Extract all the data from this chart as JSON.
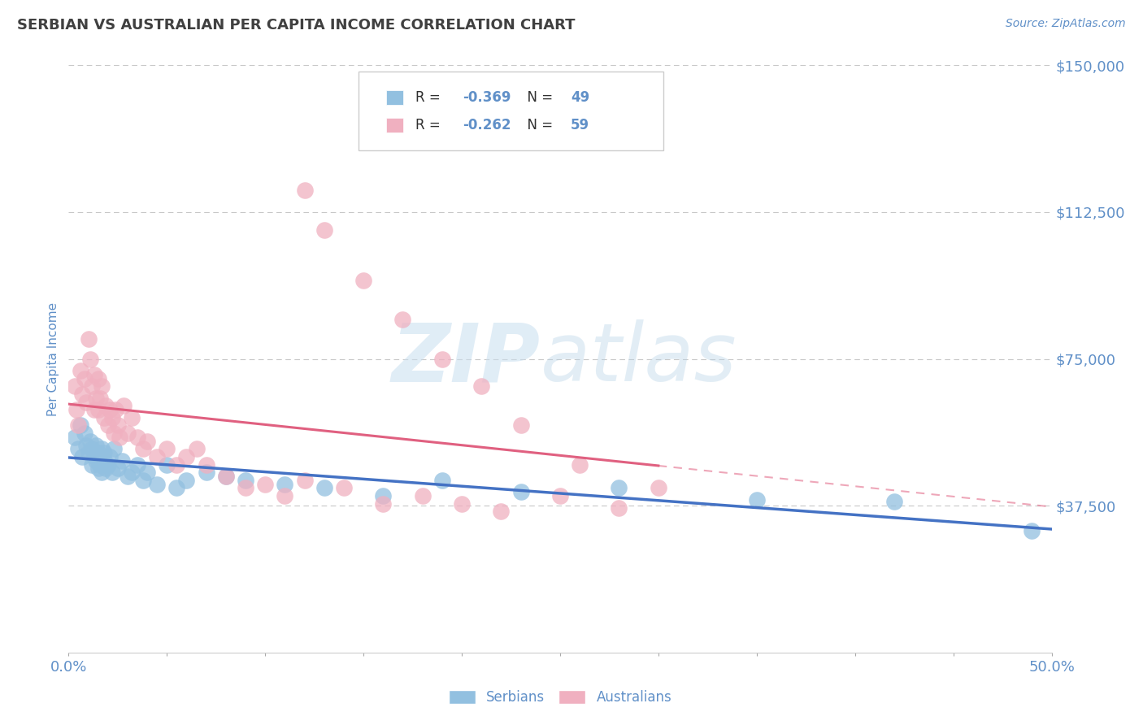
{
  "title": "SERBIAN VS AUSTRALIAN PER CAPITA INCOME CORRELATION CHART",
  "source": "Source: ZipAtlas.com",
  "ylabel": "Per Capita Income",
  "xlim": [
    0.0,
    0.5
  ],
  "ylim": [
    0,
    150000
  ],
  "yticks": [
    0,
    37500,
    75000,
    112500,
    150000
  ],
  "ytick_labels": [
    "",
    "$37,500",
    "$75,000",
    "$112,500",
    "$150,000"
  ],
  "xtick_positions": [
    0.0,
    0.05,
    0.1,
    0.15,
    0.2,
    0.25,
    0.3,
    0.35,
    0.4,
    0.45,
    0.5
  ],
  "xtick_labels_shown": {
    "0.0": "0.0%",
    "0.5": "50.0%"
  },
  "serbian_R": -0.369,
  "serbian_N": 49,
  "australian_R": -0.262,
  "australian_N": 59,
  "serbian_color": "#92c0e0",
  "australian_color": "#f0b0c0",
  "serbian_line_color": "#4472c4",
  "australian_line_color": "#e06080",
  "watermark_zip": "ZIP",
  "watermark_atlas": "atlas",
  "background_color": "#ffffff",
  "grid_color": "#c8c8c8",
  "title_color": "#404040",
  "axis_color": "#6090c8",
  "tick_label_color": "#6090c8",
  "legend_R_color": "#303030",
  "legend_val_color": "#6090c8",
  "serbians_x": [
    0.003,
    0.005,
    0.006,
    0.007,
    0.008,
    0.009,
    0.01,
    0.011,
    0.012,
    0.012,
    0.013,
    0.014,
    0.014,
    0.015,
    0.015,
    0.016,
    0.016,
    0.017,
    0.017,
    0.018,
    0.018,
    0.019,
    0.02,
    0.021,
    0.022,
    0.023,
    0.025,
    0.027,
    0.03,
    0.032,
    0.035,
    0.038,
    0.04,
    0.045,
    0.05,
    0.055,
    0.06,
    0.07,
    0.08,
    0.09,
    0.11,
    0.13,
    0.16,
    0.19,
    0.23,
    0.28,
    0.35,
    0.42,
    0.49
  ],
  "serbians_y": [
    55000,
    52000,
    58000,
    50000,
    56000,
    53000,
    51000,
    54000,
    48000,
    52000,
    50000,
    49000,
    53000,
    47000,
    51000,
    50000,
    48000,
    52000,
    46000,
    49000,
    51000,
    47000,
    48000,
    50000,
    46000,
    52000,
    47000,
    49000,
    45000,
    46000,
    48000,
    44000,
    46000,
    43000,
    48000,
    42000,
    44000,
    46000,
    45000,
    44000,
    43000,
    42000,
    40000,
    44000,
    41000,
    42000,
    39000,
    38500,
    31000
  ],
  "australians_x": [
    0.003,
    0.004,
    0.005,
    0.006,
    0.007,
    0.008,
    0.009,
    0.01,
    0.011,
    0.012,
    0.013,
    0.013,
    0.014,
    0.015,
    0.015,
    0.016,
    0.017,
    0.018,
    0.019,
    0.02,
    0.021,
    0.022,
    0.023,
    0.024,
    0.025,
    0.026,
    0.028,
    0.03,
    0.032,
    0.035,
    0.038,
    0.04,
    0.045,
    0.05,
    0.055,
    0.06,
    0.065,
    0.07,
    0.08,
    0.09,
    0.1,
    0.11,
    0.12,
    0.14,
    0.16,
    0.18,
    0.2,
    0.22,
    0.25,
    0.28,
    0.12,
    0.13,
    0.15,
    0.17,
    0.19,
    0.21,
    0.23,
    0.26,
    0.3
  ],
  "australians_y": [
    68000,
    62000,
    58000,
    72000,
    66000,
    70000,
    64000,
    80000,
    75000,
    68000,
    62000,
    71000,
    65000,
    70000,
    62000,
    65000,
    68000,
    60000,
    63000,
    58000,
    62000,
    60000,
    56000,
    62000,
    58000,
    55000,
    63000,
    56000,
    60000,
    55000,
    52000,
    54000,
    50000,
    52000,
    48000,
    50000,
    52000,
    48000,
    45000,
    42000,
    43000,
    40000,
    44000,
    42000,
    38000,
    40000,
    38000,
    36000,
    40000,
    37000,
    118000,
    108000,
    95000,
    85000,
    75000,
    68000,
    58000,
    48000,
    42000
  ]
}
